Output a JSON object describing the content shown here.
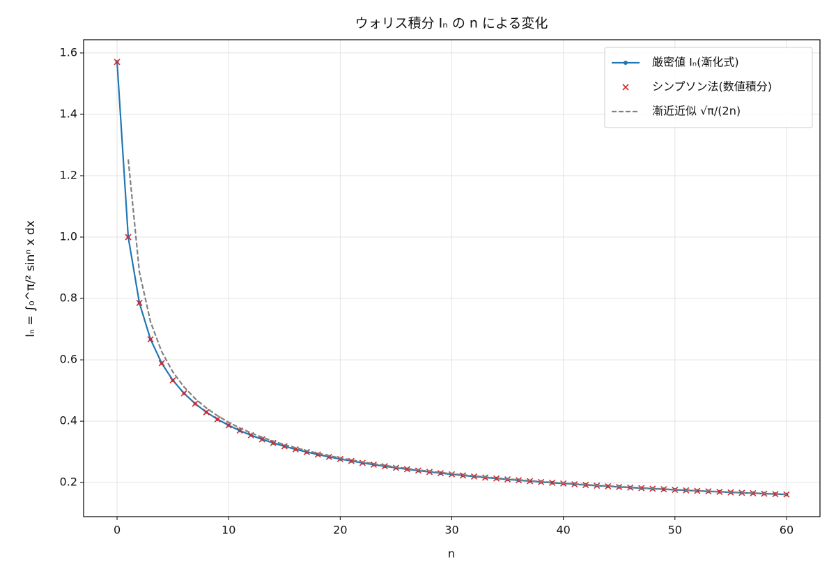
{
  "chart_data": {
    "type": "line",
    "title": "ウォリス積分 Iₙ の n による変化",
    "xlabel": "n",
    "ylabel": "Iₙ = ∫₀^π/² sinⁿ x dx",
    "x": [
      0,
      1,
      2,
      3,
      4,
      5,
      6,
      7,
      8,
      9,
      10,
      11,
      12,
      13,
      14,
      15,
      16,
      17,
      18,
      19,
      20,
      21,
      22,
      23,
      24,
      25,
      26,
      27,
      28,
      29,
      30,
      31,
      32,
      33,
      34,
      35,
      36,
      37,
      38,
      39,
      40,
      41,
      42,
      43,
      44,
      45,
      46,
      47,
      48,
      49,
      50,
      51,
      52,
      53,
      54,
      55,
      56,
      57,
      58,
      59,
      60
    ],
    "series": [
      {
        "name": "厳密値 Iₙ(漸化式)",
        "color": "#1f77b4",
        "style": "line-dot",
        "values": [
          1.5708,
          1.0,
          0.7854,
          0.6667,
          0.589,
          0.5333,
          0.4909,
          0.4571,
          0.4295,
          0.4063,
          0.3866,
          0.3694,
          0.3544,
          0.341,
          0.3291,
          0.3183,
          0.3085,
          0.2995,
          0.2914,
          0.2838,
          0.2768,
          0.2703,
          0.2642,
          0.2585,
          0.2532,
          0.2482,
          0.2435,
          0.239,
          0.2348,
          0.2307,
          0.227,
          0.2233,
          0.2199,
          0.2165,
          0.2134,
          0.2103,
          0.2075,
          0.2047,
          0.202,
          0.1994,
          0.197,
          0.1946,
          0.1923,
          0.19,
          0.1879,
          0.1858,
          0.1838,
          0.1819,
          0.18,
          0.1782,
          0.1764,
          0.1747,
          0.173,
          0.1714,
          0.1698,
          0.1682,
          0.1668,
          0.1653,
          0.1639,
          0.1625,
          0.1612
        ]
      },
      {
        "name": "シンプソン法(数値積分)",
        "color": "#d62728",
        "style": "x-marker",
        "values": [
          1.5708,
          1.0,
          0.7854,
          0.6667,
          0.589,
          0.5333,
          0.4909,
          0.4571,
          0.4295,
          0.4063,
          0.3866,
          0.3694,
          0.3544,
          0.341,
          0.3291,
          0.3183,
          0.3085,
          0.2995,
          0.2914,
          0.2838,
          0.2768,
          0.2703,
          0.2642,
          0.2585,
          0.2532,
          0.2482,
          0.2435,
          0.239,
          0.2348,
          0.2307,
          0.227,
          0.2233,
          0.2199,
          0.2165,
          0.2134,
          0.2103,
          0.2075,
          0.2047,
          0.202,
          0.1994,
          0.197,
          0.1946,
          0.1923,
          0.19,
          0.1879,
          0.1858,
          0.1838,
          0.1819,
          0.18,
          0.1782,
          0.1764,
          0.1747,
          0.173,
          0.1714,
          0.1698,
          0.1682,
          0.1668,
          0.1653,
          0.1639,
          0.1625,
          0.1612
        ]
      },
      {
        "name": "漸近近似 √π/(2n)",
        "color": "#808080",
        "style": "dashed",
        "values": [
          null,
          1.2533,
          0.8862,
          0.7236,
          0.6267,
          0.5605,
          0.5117,
          0.4737,
          0.4431,
          0.4178,
          0.3963,
          0.3779,
          0.3618,
          0.3476,
          0.335,
          0.3236,
          0.3133,
          0.304,
          0.2954,
          0.2875,
          0.2802,
          0.2735,
          0.2672,
          0.2613,
          0.2558,
          0.2507,
          0.2458,
          0.2412,
          0.2369,
          0.2327,
          0.2288,
          0.2251,
          0.2216,
          0.2182,
          0.2149,
          0.2118,
          0.2089,
          0.206,
          0.2033,
          0.2007,
          0.1982,
          0.1957,
          0.1934,
          0.1911,
          0.1889,
          0.1868,
          0.1848,
          0.1828,
          0.1809,
          0.179,
          0.1772,
          0.1755,
          0.1738,
          0.1722,
          0.1706,
          0.169,
          0.1675,
          0.166,
          0.1646,
          0.1632,
          0.1618
        ]
      }
    ],
    "xlim": [
      -3,
      63
    ],
    "xticks": [
      0,
      10,
      20,
      30,
      40,
      50,
      60
    ],
    "ylim": [
      0.089,
      1.643
    ],
    "yticks": [
      0.2,
      0.4,
      0.6,
      0.8,
      {
        "value": 1,
        "label": "1.0"
      },
      1.2,
      1.4,
      1.6
    ],
    "grid": true,
    "legend": "upper right"
  }
}
